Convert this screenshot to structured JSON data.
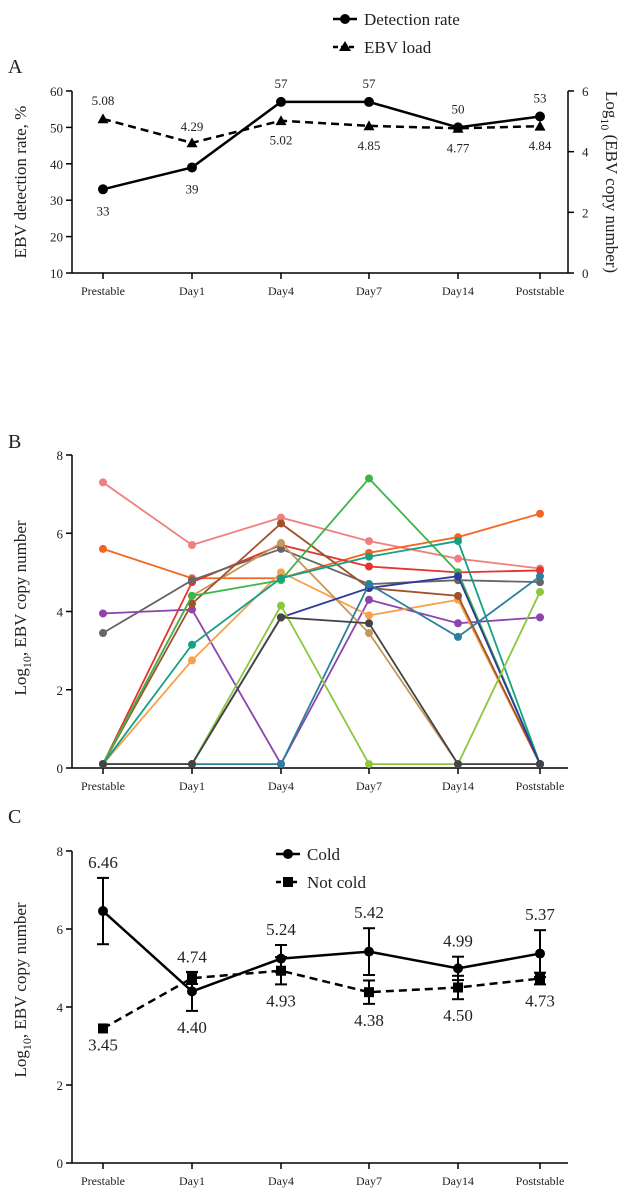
{
  "chart_data": [
    {
      "panel": "A",
      "type": "line",
      "categories": [
        "Prestable",
        "Day1",
        "Day4",
        "Day7",
        "Day14",
        "Poststable"
      ],
      "ylabel": "EBV detection rate, %",
      "ylabel_right": "Log10 (EBV copy number)",
      "ylim": [
        10,
        60
      ],
      "yticks": [
        10,
        20,
        30,
        40,
        50,
        60
      ],
      "ylim_right": [
        0,
        6
      ],
      "yticks_right": [
        0,
        2,
        4,
        6
      ],
      "series": [
        {
          "name": "Detection rate",
          "axis": "left",
          "values": [
            33,
            39,
            57,
            57,
            50,
            53
          ],
          "labels": [
            "33",
            "39",
            "57",
            "57",
            "50",
            "53"
          ]
        },
        {
          "name": "EBV load",
          "axis": "right",
          "values": [
            5.08,
            4.29,
            5.02,
            4.85,
            4.77,
            4.84
          ],
          "labels": [
            "5.08",
            "4.29",
            "5.02",
            "4.85",
            "4.77",
            "4.84"
          ]
        }
      ]
    },
    {
      "panel": "B",
      "type": "line",
      "categories": [
        "Prestable",
        "Day1",
        "Day4",
        "Day7",
        "Day14",
        "Poststable"
      ],
      "ylabel": "Log10, EBV copy number",
      "ylim": [
        0,
        8
      ],
      "yticks": [
        0,
        2,
        4,
        6,
        8
      ],
      "series": [
        {
          "color": "#f08080",
          "values": [
            7.3,
            5.7,
            6.4,
            5.8,
            5.35,
            5.1
          ]
        },
        {
          "color": "#f26522",
          "values": [
            5.6,
            4.85,
            4.85,
            5.5,
            5.9,
            6.5
          ]
        },
        {
          "color": "#e8322c",
          "values": [
            0.1,
            4.75,
            5.7,
            5.15,
            5.0,
            5.05
          ]
        },
        {
          "color": "#666666",
          "values": [
            3.45,
            4.8,
            5.6,
            4.7,
            4.8,
            4.75
          ]
        },
        {
          "color": "#8e44ad",
          "values": [
            3.95,
            4.05,
            0.1,
            4.3,
            3.7,
            3.85
          ]
        },
        {
          "color": "#f7a14b",
          "values": [
            0.1,
            2.75,
            5.0,
            3.9,
            4.3,
            0.1
          ]
        },
        {
          "color": "#c8955a",
          "values": [
            0.1,
            4.4,
            5.75,
            3.45,
            0.1,
            0.1
          ]
        },
        {
          "color": "#a0522d",
          "values": [
            0.1,
            4.2,
            6.25,
            4.6,
            4.4,
            0.1
          ]
        },
        {
          "color": "#3cb54a",
          "values": [
            0.1,
            4.4,
            4.8,
            7.4,
            5.0,
            0.1
          ]
        },
        {
          "color": "#16a085",
          "values": [
            0.1,
            3.15,
            4.85,
            5.4,
            5.8,
            0.1
          ]
        },
        {
          "color": "#2e3a9c",
          "values": [
            0.1,
            0.1,
            3.85,
            4.6,
            4.9,
            0.1
          ]
        },
        {
          "color": "#2c7f9e",
          "values": [
            0.1,
            0.1,
            0.1,
            4.7,
            3.35,
            4.9
          ]
        },
        {
          "color": "#8dc63f",
          "values": [
            0.1,
            0.1,
            4.15,
            0.1,
            0.1,
            4.5
          ]
        },
        {
          "color": "#444444",
          "values": [
            0.1,
            0.1,
            3.85,
            3.7,
            0.1,
            0.1
          ]
        }
      ]
    },
    {
      "panel": "C",
      "type": "line",
      "categories": [
        "Prestable",
        "Day1",
        "Day4",
        "Day7",
        "Day14",
        "Poststable"
      ],
      "ylabel": "Log10, EBV copy number",
      "ylim": [
        0,
        8
      ],
      "yticks": [
        0,
        2,
        4,
        6,
        8
      ],
      "series": [
        {
          "name": "Cold",
          "values": [
            6.46,
            4.4,
            5.24,
            5.42,
            4.99,
            5.37
          ],
          "err": [
            0.85,
            0.5,
            0.35,
            0.6,
            0.3,
            0.6
          ],
          "labels": [
            "6.46",
            "4.40",
            "5.24",
            "5.42",
            "4.99",
            "5.37"
          ]
        },
        {
          "name": "Not cold",
          "values": [
            3.45,
            4.74,
            4.93,
            4.38,
            4.5,
            4.73
          ],
          "err": [
            0,
            0.15,
            0.35,
            0.3,
            0.3,
            0.15
          ],
          "labels": [
            "3.45",
            "4.74",
            "4.93",
            "4.38",
            "4.50",
            "4.73"
          ]
        }
      ]
    }
  ],
  "panels": {
    "a": "A",
    "b": "B",
    "c": "C"
  },
  "legendA": {
    "s1": "Detection rate",
    "s2": "EBV load"
  },
  "legendC": {
    "s1": "Cold",
    "s2": "Not cold"
  },
  "axisA": {
    "left": "EBV detection rate, %",
    "right_prefix": "Log",
    "right_sub": "10",
    "right_suffix": " (EBV copy number)"
  },
  "axisB": {
    "prefix": "Log",
    "sub": "10",
    "suffix": ", EBV copy number"
  },
  "axisC": {
    "prefix": "Log",
    "sub": "10",
    "suffix": ", EBV copy number"
  }
}
